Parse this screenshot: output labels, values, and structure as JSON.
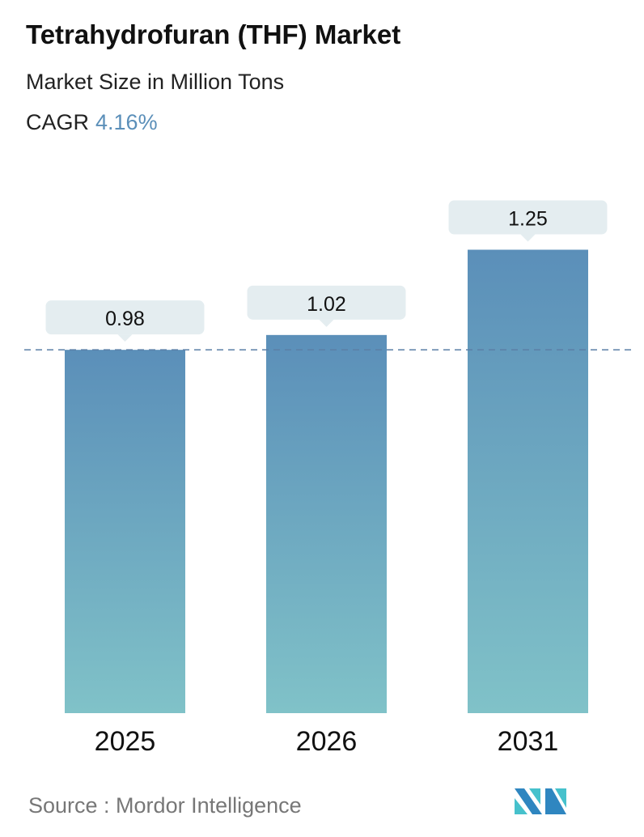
{
  "header": {
    "title": "Tetrahydrofuran (THF) Market",
    "subtitle": "Market Size in Million Tons",
    "cagr_label": "CAGR",
    "cagr_value": "4.16%"
  },
  "colors": {
    "cagr": "#5b8fb9",
    "bar_top": "#5b8fb9",
    "bar_bottom": "#80c2c8",
    "label_box": "#e4edf0",
    "reference_line": "#5b7fa6"
  },
  "chart_data": {
    "type": "bar",
    "categories": [
      "2025",
      "2026",
      "2031"
    ],
    "values": [
      0.98,
      1.02,
      1.25
    ],
    "data_labels": [
      "0.98",
      "1.02",
      "1.25"
    ],
    "title": "Tetrahydrofuran (THF) Market",
    "xlabel": "",
    "ylabel": "",
    "ylim": [
      0,
      1.25
    ],
    "grid": false,
    "reference_line": {
      "value": 0.98,
      "style": "dashed"
    }
  },
  "footer": {
    "source": "Source :  Mordor Intelligence",
    "logo": "Mordor Intelligence logo"
  }
}
